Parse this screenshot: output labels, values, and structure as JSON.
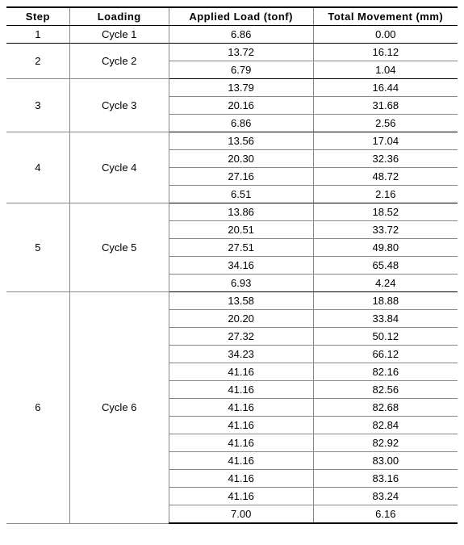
{
  "table": {
    "type": "table",
    "background_color": "#ffffff",
    "text_color": "#000000",
    "grid_color": "#888888",
    "outer_border_color": "#000000",
    "font_size_pt": 10,
    "header_font_weight": "bold",
    "columns": [
      {
        "key": "step",
        "label": "Step",
        "width_pct": 14,
        "align": "center"
      },
      {
        "key": "loading",
        "label": "Loading",
        "width_pct": 22,
        "align": "center"
      },
      {
        "key": "load",
        "label": "Applied Load (tonf)",
        "width_pct": 32,
        "align": "center"
      },
      {
        "key": "movement",
        "label": "Total Movement (mm)",
        "width_pct": 32,
        "align": "center"
      }
    ],
    "groups": [
      {
        "step": "1",
        "loading": "Cycle 1",
        "rows": [
          {
            "load": "6.86",
            "movement": "0.00"
          }
        ]
      },
      {
        "step": "2",
        "loading": "Cycle 2",
        "rows": [
          {
            "load": "13.72",
            "movement": "16.12"
          },
          {
            "load": "6.79",
            "movement": "1.04"
          }
        ]
      },
      {
        "step": "3",
        "loading": "Cycle 3",
        "rows": [
          {
            "load": "13.79",
            "movement": "16.44"
          },
          {
            "load": "20.16",
            "movement": "31.68"
          },
          {
            "load": "6.86",
            "movement": "2.56"
          }
        ]
      },
      {
        "step": "4",
        "loading": "Cycle 4",
        "rows": [
          {
            "load": "13.56",
            "movement": "17.04"
          },
          {
            "load": "20.30",
            "movement": "32.36"
          },
          {
            "load": "27.16",
            "movement": "48.72"
          },
          {
            "load": "6.51",
            "movement": "2.16"
          }
        ]
      },
      {
        "step": "5",
        "loading": "Cycle 5",
        "rows": [
          {
            "load": "13.86",
            "movement": "18.52"
          },
          {
            "load": "20.51",
            "movement": "33.72"
          },
          {
            "load": "27.51",
            "movement": "49.80"
          },
          {
            "load": "34.16",
            "movement": "65.48"
          },
          {
            "load": "6.93",
            "movement": "4.24"
          }
        ]
      },
      {
        "step": "6",
        "loading": "Cycle 6",
        "rows": [
          {
            "load": "13.58",
            "movement": "18.88"
          },
          {
            "load": "20.20",
            "movement": "33.84"
          },
          {
            "load": "27.32",
            "movement": "50.12"
          },
          {
            "load": "34.23",
            "movement": "66.12"
          },
          {
            "load": "41.16",
            "movement": "82.16"
          },
          {
            "load": "41.16",
            "movement": "82.56"
          },
          {
            "load": "41.16",
            "movement": "82.68"
          },
          {
            "load": "41.16",
            "movement": "82.84"
          },
          {
            "load": "41.16",
            "movement": "82.92"
          },
          {
            "load": "41.16",
            "movement": "83.00"
          },
          {
            "load": "41.16",
            "movement": "83.16"
          },
          {
            "load": "41.16",
            "movement": "83.24"
          },
          {
            "load": "7.00",
            "movement": "6.16"
          }
        ]
      }
    ]
  }
}
